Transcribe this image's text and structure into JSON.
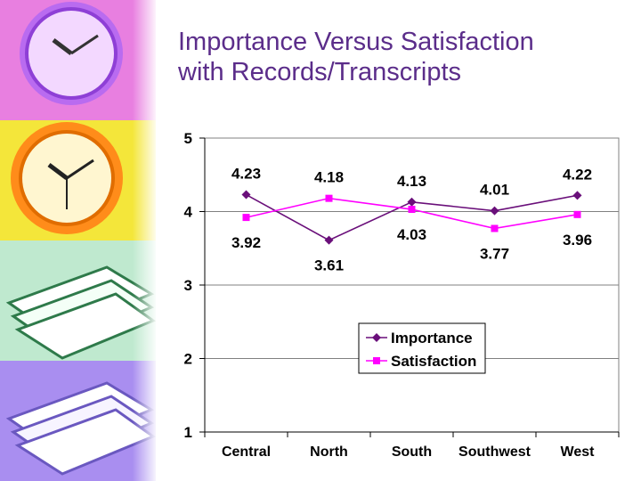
{
  "slide": {
    "title": "Importance Versus Satisfaction\nwith Records/Transcripts"
  },
  "sidebar_images": [
    "clock-icon",
    "clock-icon",
    "papers-stack-icon",
    "papers-stack-icon"
  ],
  "chart_data": {
    "type": "line",
    "categories": [
      "Central",
      "North",
      "South",
      "Southwest",
      "West"
    ],
    "series": [
      {
        "name": "Importance",
        "values": [
          4.23,
          3.61,
          4.13,
          4.01,
          4.22
        ],
        "color": "#6a0f7a",
        "marker": "diamond"
      },
      {
        "name": "Satisfaction",
        "values": [
          3.92,
          4.18,
          4.03,
          3.77,
          3.96
        ],
        "color": "#ff00ff",
        "marker": "square"
      }
    ],
    "data_labels": {
      "above": [
        "4.23",
        "4.18",
        "4.13",
        "4.01",
        "4.22"
      ],
      "below": [
        "3.92",
        "3.61",
        "4.03",
        "3.77",
        "3.96"
      ]
    },
    "ylim": [
      1,
      5
    ],
    "yticks": [
      "1",
      "2",
      "3",
      "4",
      "5"
    ],
    "grid": true,
    "legend_position": "center-right",
    "xlabel": "",
    "ylabel": ""
  }
}
